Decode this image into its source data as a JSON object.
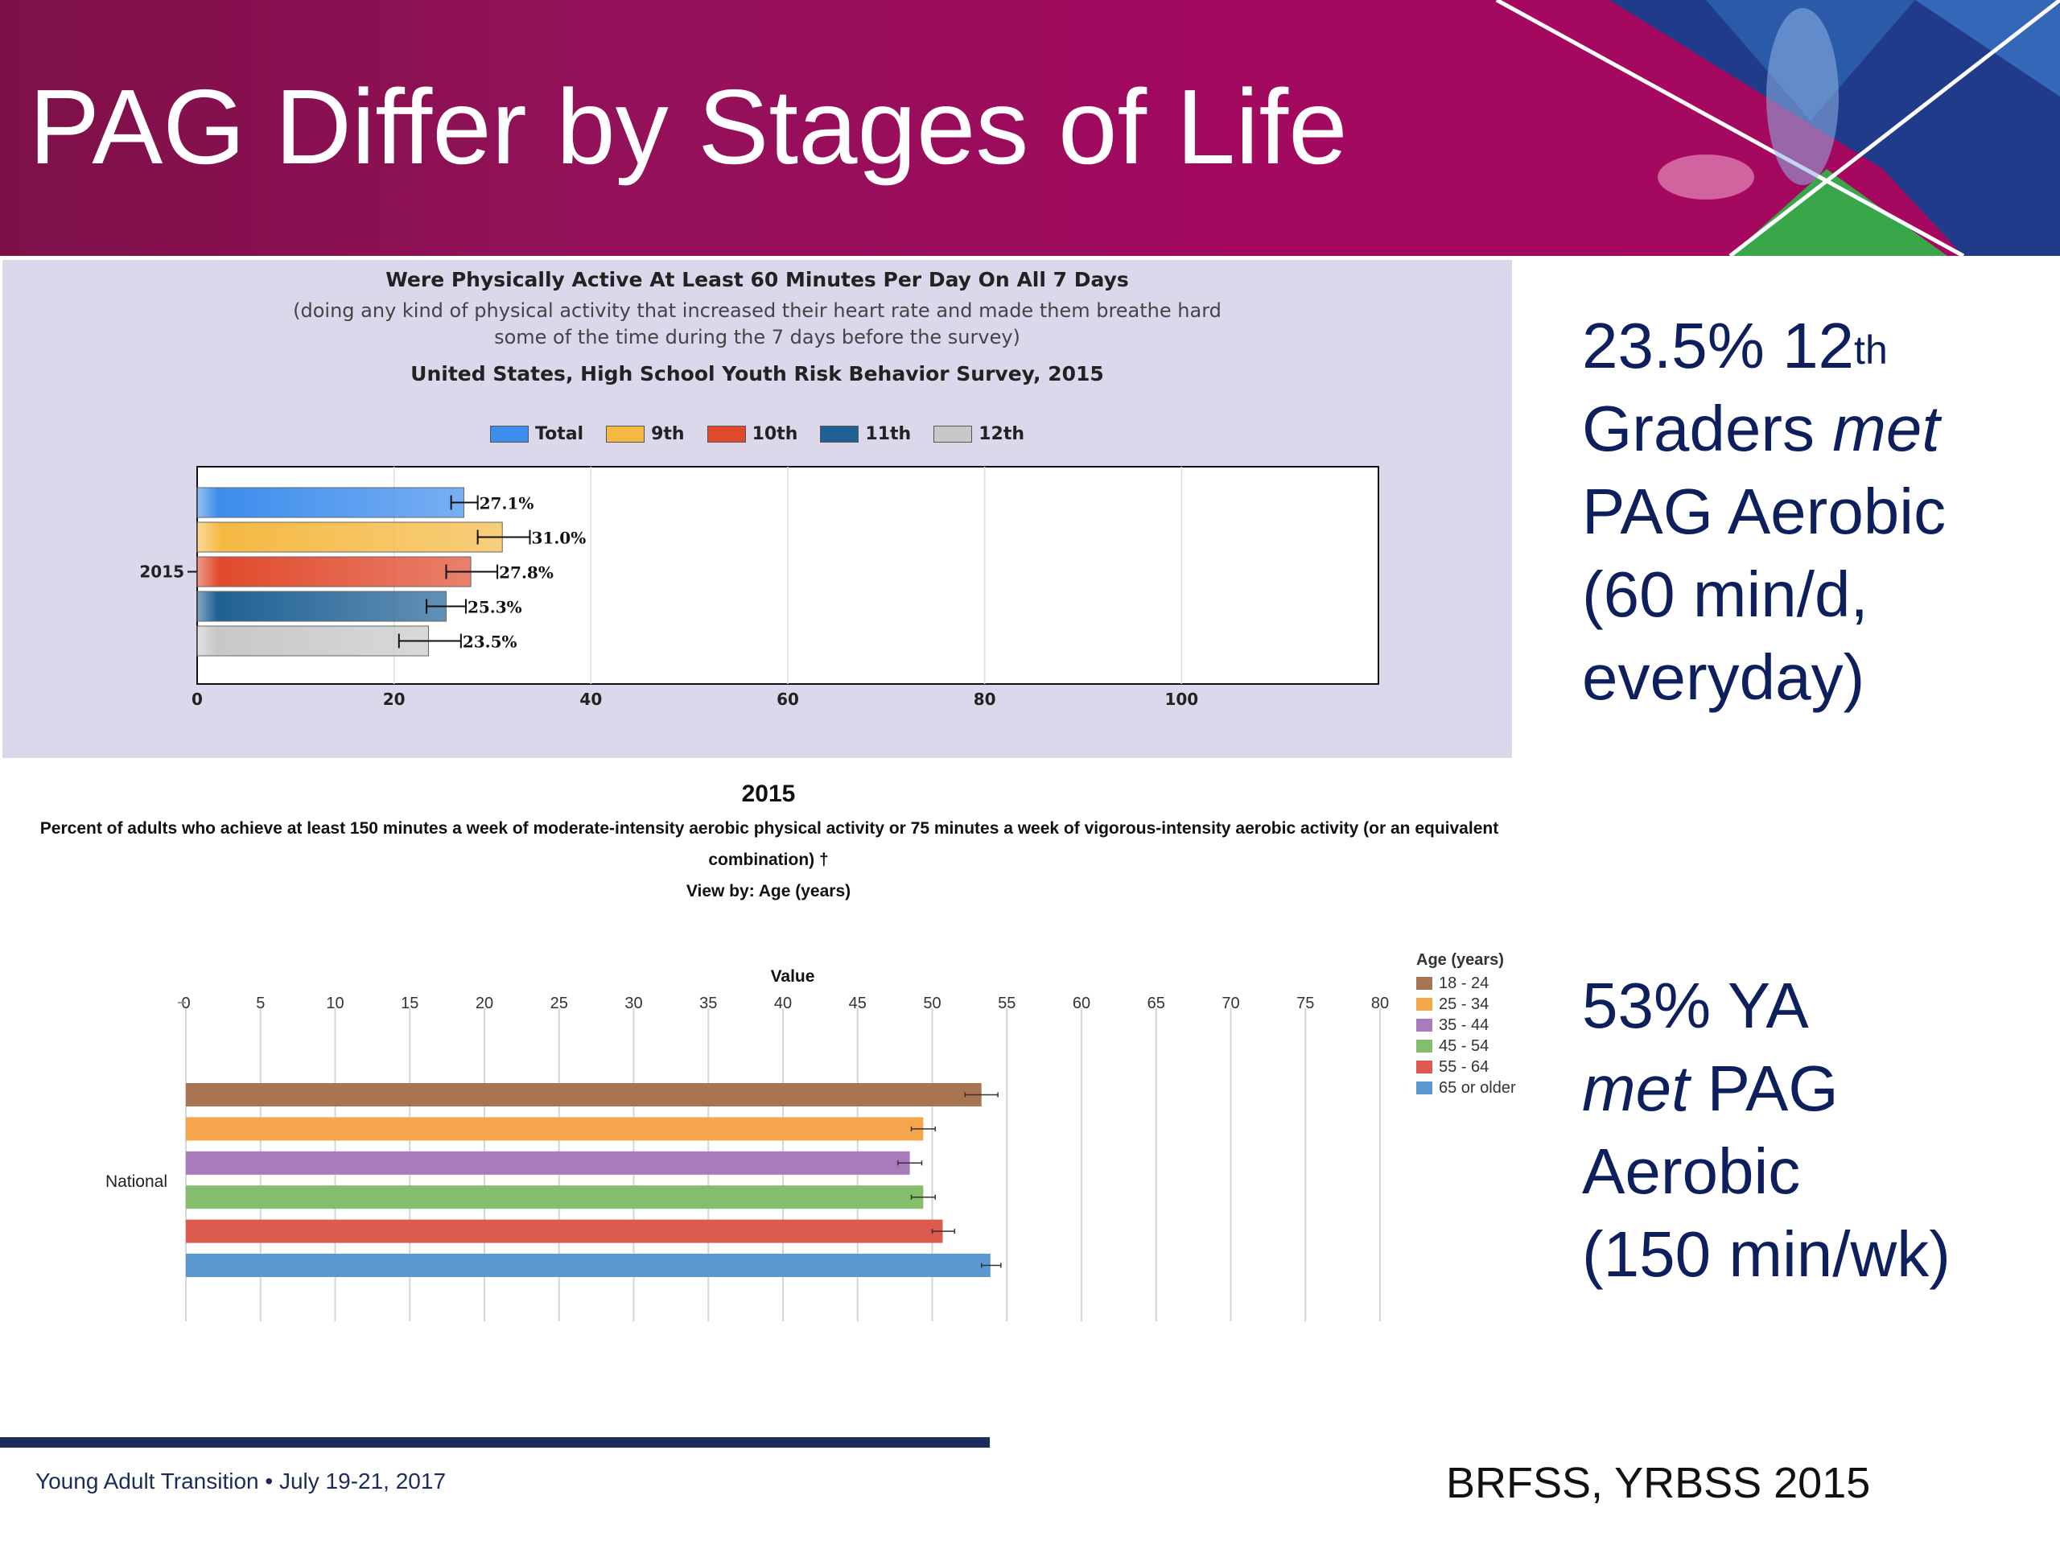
{
  "slide": {
    "title": "PAG Differ by Stages of Life",
    "banner_color": "#9a0d5c",
    "title_color": "#ffffff"
  },
  "statements": {
    "yrbs": {
      "line1_main": "23.5% 12",
      "line1_sup": "th",
      "line2_word": "Graders ",
      "line2_em": "met",
      "line3": "PAG Aerobic",
      "line4": "(60 min/d,",
      "line5": "everyday)"
    },
    "brfss": {
      "line1": "53% YA",
      "line2_em": "met",
      "line2_word": " PAG",
      "line3": "Aerobic",
      "line4": "(150 min/wk)"
    },
    "color": "#0d1f5c"
  },
  "footer": {
    "left": "Young Adult Transition • July 19-21, 2017",
    "right": "BRFSS, YRBSS 2015"
  },
  "chart_data": [
    {
      "type": "bar",
      "orientation": "horizontal",
      "title": "Were Physically Active At Least 60 Minutes Per Day On All 7 Days",
      "subtitle_line1": "(doing any kind of physical activity that increased their heart rate and made them breathe hard",
      "subtitle_line2": "some of the time during the 7 days before the survey)",
      "survey": "United States, High School Youth Risk Behavior Survey, 2015",
      "categories": [
        "2015"
      ],
      "series": [
        {
          "name": "Total",
          "values": [
            27.1
          ],
          "ci": [
            25.8,
            28.5
          ],
          "label": "27.1%",
          "color": "#3d8ded"
        },
        {
          "name": "9th",
          "values": [
            31.0
          ],
          "ci": [
            28.5,
            33.8
          ],
          "label": "31.0%",
          "color": "#f5b942"
        },
        {
          "name": "10th",
          "values": [
            27.8
          ],
          "ci": [
            25.3,
            30.5
          ],
          "label": "27.8%",
          "color": "#e04a2c"
        },
        {
          "name": "11th",
          "values": [
            25.3
          ],
          "ci": [
            23.3,
            27.3
          ],
          "label": "25.3%",
          "color": "#1f6194"
        },
        {
          "name": "12th",
          "values": [
            23.5
          ],
          "ci": [
            20.5,
            26.8
          ],
          "label": "23.5%",
          "color": "#c8c8c8"
        }
      ],
      "xlim": [
        0,
        120
      ],
      "xticks": [
        "0",
        "20",
        "40",
        "60",
        "80",
        "100"
      ],
      "grid": true,
      "legend_position": "top"
    },
    {
      "type": "bar",
      "orientation": "horizontal",
      "year": "2015",
      "title_line1": "Percent of adults who achieve at least 150 minutes a week of moderate-intensity aerobic physical activity or 75 minutes a week of vigorous-intensity aerobic activity (or an equivalent",
      "title_line2": "combination) †",
      "view_by": "View by: Age (years)",
      "xlabel": "Value",
      "categories": [
        "National"
      ],
      "legend_title": "Age (years)",
      "series": [
        {
          "name": "18 - 24",
          "values": [
            53.3
          ],
          "ci": [
            52.2,
            54.4
          ],
          "color": "#a87553"
        },
        {
          "name": "25 - 34",
          "values": [
            49.4
          ],
          "ci": [
            48.6,
            50.2
          ],
          "color": "#f5a54c"
        },
        {
          "name": "35 - 44",
          "values": [
            48.5
          ],
          "ci": [
            47.7,
            49.3
          ],
          "color": "#a97bbd"
        },
        {
          "name": "45 - 54",
          "values": [
            49.4
          ],
          "ci": [
            48.6,
            50.2
          ],
          "color": "#84bd6c"
        },
        {
          "name": "55 - 64",
          "values": [
            50.7
          ],
          "ci": [
            50.0,
            51.5
          ],
          "color": "#dd5a4e"
        },
        {
          "name": "65 or older",
          "values": [
            53.9
          ],
          "ci": [
            53.3,
            54.6
          ],
          "color": "#5b98cf"
        }
      ],
      "xlim": [
        0,
        80
      ],
      "xticks": [
        "0",
        "5",
        "10",
        "15",
        "20",
        "25",
        "30",
        "35",
        "40",
        "45",
        "50",
        "55",
        "60",
        "65",
        "70",
        "75",
        "80"
      ],
      "grid": true,
      "legend_position": "right"
    }
  ]
}
